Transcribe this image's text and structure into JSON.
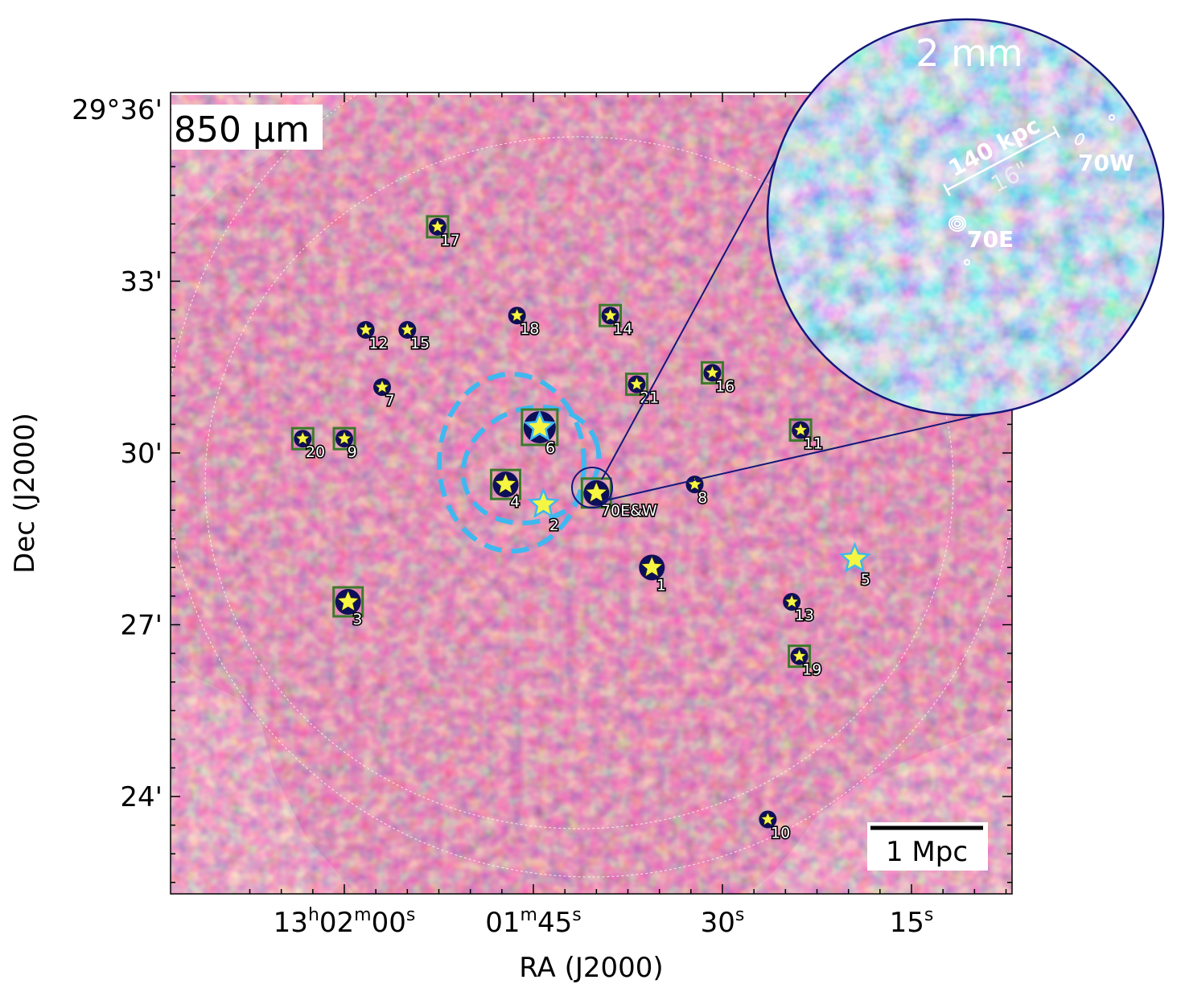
{
  "figure": {
    "band_label": "850 μm",
    "scale_bar_label": "1 Mpc",
    "x_axis_title": "RA (J2000)",
    "y_axis_title": "Dec (J2000)",
    "ra_ticks": [
      {
        "h": "13",
        "hs": "h",
        "m": "02",
        "ms": "m",
        "s": "00",
        "ss": "s",
        "ra_sec": 120
      },
      {
        "h": "",
        "hs": "",
        "m": "01",
        "ms": "m",
        "s": "45",
        "ss": "s",
        "ra_sec": 105
      },
      {
        "h": "",
        "hs": "",
        "m": "",
        "ms": "",
        "s": "30",
        "ss": "s",
        "ra_sec": 90
      },
      {
        "h": "",
        "hs": "",
        "m": "",
        "ms": "",
        "s": "15",
        "ss": "s",
        "ra_sec": 75
      }
    ],
    "dec_ticks": [
      {
        "label": "29°36'",
        "dec_arcmin": 36
      },
      {
        "label": "33'",
        "dec_arcmin": 33
      },
      {
        "label": "30'",
        "dec_arcmin": 30
      },
      {
        "label": "27'",
        "dec_arcmin": 27
      },
      {
        "label": "24'",
        "dec_arcmin": 24
      }
    ],
    "sources": [
      {
        "id": "1",
        "ra_sec": 95.6,
        "dec_arcmin": 28.0,
        "size": "large",
        "box": false,
        "circle": true,
        "color": "#f5f542"
      },
      {
        "id": "2",
        "ra_sec": 104.2,
        "dec_arcmin": 29.1,
        "size": "xlarge",
        "box": false,
        "circle": false,
        "color": "#f5f542",
        "cyan": true
      },
      {
        "id": "3",
        "ra_sec": 119.7,
        "dec_arcmin": 27.4,
        "size": "large",
        "box": true,
        "circle": false,
        "color": "#f5f542"
      },
      {
        "id": "4",
        "ra_sec": 107.2,
        "dec_arcmin": 29.45,
        "size": "large",
        "box": true,
        "circle": false,
        "color": "#f5f542"
      },
      {
        "id": "5",
        "ra_sec": 79.5,
        "dec_arcmin": 28.15,
        "size": "xlarge",
        "box": false,
        "circle": false,
        "color": "#f5f542",
        "cyan": true
      },
      {
        "id": "6",
        "ra_sec": 104.5,
        "dec_arcmin": 30.45,
        "size": "xlarge",
        "box": true,
        "circle": false,
        "color": "#f5f542",
        "cyan": true
      },
      {
        "id": "7",
        "ra_sec": 117.0,
        "dec_arcmin": 31.15,
        "size": "small",
        "box": false,
        "circle": true,
        "color": "#f5f542"
      },
      {
        "id": "8",
        "ra_sec": 92.2,
        "dec_arcmin": 29.45,
        "size": "small",
        "box": false,
        "circle": true,
        "color": "#f5f542"
      },
      {
        "id": "9",
        "ra_sec": 120.0,
        "dec_arcmin": 30.25,
        "size": "small",
        "box": true,
        "circle": false,
        "color": "#f5f542"
      },
      {
        "id": "10",
        "ra_sec": 86.4,
        "dec_arcmin": 23.6,
        "size": "small",
        "box": false,
        "circle": true,
        "color": "#f5f542"
      },
      {
        "id": "11",
        "ra_sec": 83.8,
        "dec_arcmin": 30.4,
        "size": "small",
        "box": true,
        "circle": false,
        "color": "#f5f542"
      },
      {
        "id": "12",
        "ra_sec": 118.3,
        "dec_arcmin": 32.15,
        "size": "small",
        "box": false,
        "circle": true,
        "color": "#f5f542"
      },
      {
        "id": "13",
        "ra_sec": 84.5,
        "dec_arcmin": 27.4,
        "size": "small",
        "box": false,
        "circle": true,
        "color": "#f5f542"
      },
      {
        "id": "14",
        "ra_sec": 98.9,
        "dec_arcmin": 32.4,
        "size": "small",
        "box": true,
        "circle": false,
        "color": "#f5f542"
      },
      {
        "id": "15",
        "ra_sec": 115.0,
        "dec_arcmin": 32.15,
        "size": "small",
        "box": false,
        "circle": true,
        "color": "#f5f542"
      },
      {
        "id": "16",
        "ra_sec": 90.8,
        "dec_arcmin": 31.4,
        "size": "small",
        "box": true,
        "circle": false,
        "color": "#f5f542"
      },
      {
        "id": "17",
        "ra_sec": 112.6,
        "dec_arcmin": 33.95,
        "size": "small",
        "box": true,
        "circle": false,
        "color": "#f5f542"
      },
      {
        "id": "18",
        "ra_sec": 106.3,
        "dec_arcmin": 32.4,
        "size": "small",
        "box": false,
        "circle": true,
        "color": "#f5f542"
      },
      {
        "id": "19",
        "ra_sec": 83.9,
        "dec_arcmin": 26.45,
        "size": "small",
        "box": true,
        "circle": false,
        "color": "#f5f542"
      },
      {
        "id": "20",
        "ra_sec": 123.3,
        "dec_arcmin": 30.25,
        "size": "small",
        "box": true,
        "circle": false,
        "color": "#f5f542"
      },
      {
        "id": "21",
        "ra_sec": 96.8,
        "dec_arcmin": 31.2,
        "size": "small",
        "box": true,
        "circle": false,
        "color": "#f5f542"
      },
      {
        "id": "70E&W",
        "ra_sec": 100.0,
        "dec_arcmin": 29.3,
        "size": "large",
        "box": true,
        "circle": true,
        "color": "#f5f542"
      }
    ]
  },
  "inset": {
    "band_label": "2 mm",
    "scale_kpc": "140 kpc",
    "scale_arcsec": "16\"",
    "label_east": "70E",
    "label_west": "70W"
  },
  "colors": {
    "map_base": "#c0508a",
    "map_high": "#f5b45a",
    "map_low": "#4a1f8e",
    "cyan_dash": "#3fb8f0",
    "box_green": "#3d7a2a",
    "inset_border": "#15167a"
  }
}
